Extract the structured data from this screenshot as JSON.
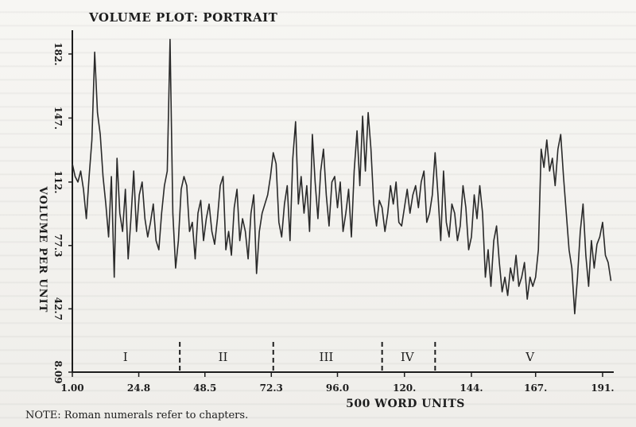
{
  "chart_data": {
    "type": "line",
    "title": "VOLUME PLOT: PORTRAIT",
    "xlabel": "500 WORD UNITS",
    "ylabel": "VOLUME PER UNIT",
    "xlim": [
      1,
      195
    ],
    "ylim": [
      8.09,
      195
    ],
    "x_ticks": [
      1.0,
      24.8,
      48.5,
      72.3,
      96.0,
      120.0,
      144.0,
      167.0,
      191.0
    ],
    "x_tick_labels": [
      "1.00",
      "24.8",
      "48.5",
      "72.3",
      "96.0",
      "120.",
      "144.",
      "167.",
      "191."
    ],
    "y_ticks": [
      8.09,
      42.7,
      77.3,
      112.0,
      147.0,
      182.0
    ],
    "y_tick_labels": [
      "8.09",
      "42.7",
      "77.3",
      "112.",
      "147.",
      "182."
    ],
    "grid": false,
    "note": "NOTE: Roman numerals refer to chapters.",
    "chapter_boundaries": [
      39.5,
      73.0,
      112.0,
      131.0
    ],
    "chapters": [
      {
        "label": "I",
        "x": 20
      },
      {
        "label": "II",
        "x": 55
      },
      {
        "label": "III",
        "x": 92
      },
      {
        "label": "IV",
        "x": 121
      },
      {
        "label": "V",
        "x": 165
      }
    ],
    "series": [
      {
        "values": [
          [
            1,
            122
          ],
          [
            2,
            115
          ],
          [
            3,
            112
          ],
          [
            4,
            118
          ],
          [
            5,
            108
          ],
          [
            6,
            92
          ],
          [
            7,
            115
          ],
          [
            8,
            135
          ],
          [
            9,
            183
          ],
          [
            10,
            150
          ],
          [
            11,
            138
          ],
          [
            12,
            115
          ],
          [
            13,
            100
          ],
          [
            14,
            82
          ],
          [
            15,
            115
          ],
          [
            16,
            60
          ],
          [
            17,
            125
          ],
          [
            18,
            95
          ],
          [
            19,
            85
          ],
          [
            20,
            108
          ],
          [
            21,
            70
          ],
          [
            22,
            92
          ],
          [
            23,
            118
          ],
          [
            24,
            85
          ],
          [
            25,
            105
          ],
          [
            26,
            112
          ],
          [
            27,
            92
          ],
          [
            28,
            82
          ],
          [
            29,
            90
          ],
          [
            30,
            100
          ],
          [
            31,
            80
          ],
          [
            32,
            75
          ],
          [
            33,
            95
          ],
          [
            34,
            110
          ],
          [
            35,
            118
          ],
          [
            36,
            190
          ],
          [
            37,
            95
          ],
          [
            38,
            65
          ],
          [
            39,
            80
          ],
          [
            40,
            108
          ],
          [
            41,
            115
          ],
          [
            42,
            110
          ],
          [
            43,
            85
          ],
          [
            44,
            90
          ],
          [
            45,
            70
          ],
          [
            46,
            95
          ],
          [
            47,
            102
          ],
          [
            48,
            80
          ],
          [
            49,
            92
          ],
          [
            50,
            100
          ],
          [
            51,
            85
          ],
          [
            52,
            78
          ],
          [
            53,
            92
          ],
          [
            54,
            110
          ],
          [
            55,
            115
          ],
          [
            56,
            75
          ],
          [
            57,
            85
          ],
          [
            58,
            72
          ],
          [
            59,
            98
          ],
          [
            60,
            108
          ],
          [
            61,
            80
          ],
          [
            62,
            92
          ],
          [
            63,
            85
          ],
          [
            64,
            70
          ],
          [
            65,
            95
          ],
          [
            66,
            105
          ],
          [
            67,
            62
          ],
          [
            68,
            85
          ],
          [
            69,
            95
          ],
          [
            70,
            100
          ],
          [
            71,
            105
          ],
          [
            72,
            115
          ],
          [
            73,
            128
          ],
          [
            74,
            122
          ],
          [
            75,
            90
          ],
          [
            76,
            82
          ],
          [
            77,
            100
          ],
          [
            78,
            110
          ],
          [
            79,
            80
          ],
          [
            80,
            125
          ],
          [
            81,
            145
          ],
          [
            82,
            100
          ],
          [
            83,
            115
          ],
          [
            84,
            95
          ],
          [
            85,
            110
          ],
          [
            86,
            85
          ],
          [
            87,
            138
          ],
          [
            88,
            112
          ],
          [
            89,
            92
          ],
          [
            90,
            118
          ],
          [
            91,
            130
          ],
          [
            92,
            105
          ],
          [
            93,
            88
          ],
          [
            94,
            112
          ],
          [
            95,
            115
          ],
          [
            96,
            98
          ],
          [
            97,
            112
          ],
          [
            98,
            85
          ],
          [
            99,
            95
          ],
          [
            100,
            108
          ],
          [
            101,
            82
          ],
          [
            102,
            118
          ],
          [
            103,
            140
          ],
          [
            104,
            110
          ],
          [
            105,
            148
          ],
          [
            106,
            118
          ],
          [
            107,
            150
          ],
          [
            108,
            130
          ],
          [
            109,
            100
          ],
          [
            110,
            88
          ],
          [
            111,
            102
          ],
          [
            112,
            98
          ],
          [
            113,
            85
          ],
          [
            114,
            95
          ],
          [
            115,
            110
          ],
          [
            116,
            100
          ],
          [
            117,
            112
          ],
          [
            118,
            90
          ],
          [
            119,
            88
          ],
          [
            120,
            98
          ],
          [
            121,
            108
          ],
          [
            122,
            95
          ],
          [
            123,
            105
          ],
          [
            124,
            110
          ],
          [
            125,
            98
          ],
          [
            126,
            112
          ],
          [
            127,
            118
          ],
          [
            128,
            90
          ],
          [
            129,
            95
          ],
          [
            130,
            105
          ],
          [
            131,
            128
          ],
          [
            132,
            105
          ],
          [
            133,
            80
          ],
          [
            134,
            118
          ],
          [
            135,
            90
          ],
          [
            136,
            82
          ],
          [
            137,
            100
          ],
          [
            138,
            95
          ],
          [
            139,
            80
          ],
          [
            140,
            88
          ],
          [
            141,
            110
          ],
          [
            142,
            98
          ],
          [
            143,
            75
          ],
          [
            144,
            82
          ],
          [
            145,
            105
          ],
          [
            146,
            92
          ],
          [
            147,
            110
          ],
          [
            148,
            95
          ],
          [
            149,
            60
          ],
          [
            150,
            75
          ],
          [
            151,
            55
          ],
          [
            152,
            80
          ],
          [
            153,
            88
          ],
          [
            154,
            68
          ],
          [
            155,
            52
          ],
          [
            156,
            60
          ],
          [
            157,
            50
          ],
          [
            158,
            65
          ],
          [
            159,
            58
          ],
          [
            160,
            72
          ],
          [
            161,
            55
          ],
          [
            162,
            60
          ],
          [
            163,
            68
          ],
          [
            164,
            48
          ],
          [
            165,
            60
          ],
          [
            166,
            55
          ],
          [
            167,
            60
          ],
          [
            168,
            75
          ],
          [
            169,
            130
          ],
          [
            170,
            120
          ],
          [
            171,
            135
          ],
          [
            172,
            118
          ],
          [
            173,
            125
          ],
          [
            174,
            110
          ],
          [
            175,
            130
          ],
          [
            176,
            138
          ],
          [
            177,
            115
          ],
          [
            178,
            95
          ],
          [
            179,
            75
          ],
          [
            180,
            65
          ],
          [
            181,
            40
          ],
          [
            182,
            60
          ],
          [
            183,
            85
          ],
          [
            184,
            100
          ],
          [
            185,
            72
          ],
          [
            186,
            55
          ],
          [
            187,
            80
          ],
          [
            188,
            65
          ],
          [
            189,
            78
          ],
          [
            190,
            82
          ],
          [
            191,
            90
          ],
          [
            192,
            72
          ],
          [
            193,
            68
          ],
          [
            194,
            58
          ]
        ]
      }
    ]
  }
}
